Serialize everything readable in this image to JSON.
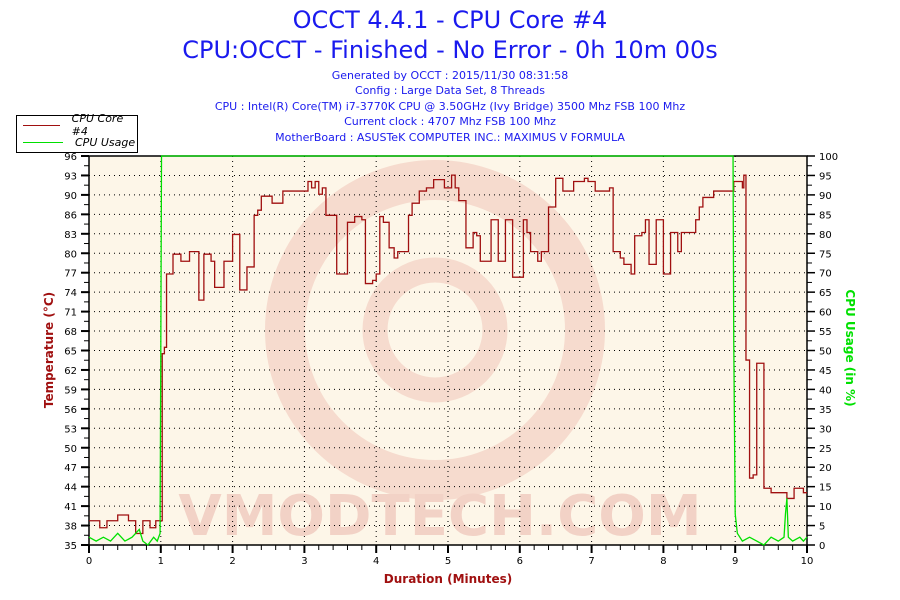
{
  "title": "OCCT 4.4.1 - CPU Core #4",
  "subtitle": "CPU:OCCT - Finished - No Error - 0h 10m 00s",
  "info_lines": [
    "Generated by OCCT : 2015/11/30 08:31:58",
    "Config : Large Data Set, 8 Threads",
    "CPU : Intel(R) Core(TM) i7-3770K CPU @ 3.50GHz (Ivy Bridge) 3500 Mhz FSB 100 Mhz",
    "Current clock : 4707 Mhz FSB 100 Mhz",
    "MotherBoard : ASUSTeK COMPUTER INC.: MAXIMUS V FORMULA"
  ],
  "watermark": "VMODTECH.COM",
  "colors": {
    "temperature": "#a01010",
    "cpu_usage": "#00e000",
    "plot_bg": "#fdf6e8",
    "title": "#1a1aee"
  },
  "chart_data": {
    "type": "line",
    "xlabel": "Duration (Minutes)",
    "ylabel": "Temperature (°C)",
    "y2label": "CPU Usage (in %)",
    "xlim": [
      0,
      10
    ],
    "ylim": [
      35,
      96
    ],
    "y2lim": [
      0,
      100
    ],
    "grid": true,
    "legend_position": "top-left",
    "x_ticks": [
      "0",
      "1",
      "2",
      "3",
      "4",
      "5",
      "6",
      "7",
      "8",
      "9",
      "10"
    ],
    "y_ticks": [
      "35",
      "38",
      "41",
      "44",
      "47",
      "50",
      "53",
      "56",
      "59",
      "62",
      "65",
      "68",
      "71",
      "74",
      "77",
      "80",
      "83",
      "86",
      "90",
      "93",
      "96"
    ],
    "y2_ticks": [
      "0",
      "5",
      "10",
      "15",
      "20",
      "25",
      "30",
      "35",
      "40",
      "45",
      "50",
      "55",
      "60",
      "65",
      "70",
      "75",
      "80",
      "85",
      "90",
      "95",
      "100"
    ],
    "series": [
      {
        "name": "CPU Core #4",
        "axis": "left",
        "step": true,
        "points": [
          [
            0,
            38.8
          ],
          [
            0.15,
            37.7
          ],
          [
            0.25,
            38.8
          ],
          [
            0.4,
            39.7
          ],
          [
            0.55,
            38.8
          ],
          [
            0.65,
            36.8
          ],
          [
            0.75,
            38.8
          ],
          [
            0.85,
            37.7
          ],
          [
            0.93,
            38.8
          ],
          [
            1.0,
            38.8
          ],
          [
            1.02,
            65
          ],
          [
            1.05,
            66
          ],
          [
            1.08,
            77.5
          ],
          [
            1.17,
            80.6
          ],
          [
            1.28,
            79.5
          ],
          [
            1.4,
            81
          ],
          [
            1.53,
            73.4
          ],
          [
            1.6,
            80.6
          ],
          [
            1.7,
            79.5
          ],
          [
            1.75,
            75.4
          ],
          [
            1.88,
            79.5
          ],
          [
            2.0,
            83.7
          ],
          [
            2.1,
            75
          ],
          [
            2.2,
            78.6
          ],
          [
            2.3,
            86.7
          ],
          [
            2.35,
            87.5
          ],
          [
            2.4,
            89.7
          ],
          [
            2.55,
            88.6
          ],
          [
            2.7,
            90.5
          ],
          [
            3.05,
            92
          ],
          [
            3.1,
            91
          ],
          [
            3.15,
            92
          ],
          [
            3.2,
            90
          ],
          [
            3.25,
            91
          ],
          [
            3.3,
            86.7
          ],
          [
            3.45,
            77.5
          ],
          [
            3.6,
            85.6
          ],
          [
            3.7,
            86.5
          ],
          [
            3.8,
            86
          ],
          [
            3.85,
            76
          ],
          [
            3.95,
            76.5
          ],
          [
            4.0,
            77.5
          ],
          [
            4.05,
            86.5
          ],
          [
            4.1,
            85.6
          ],
          [
            4.18,
            81.6
          ],
          [
            4.25,
            80
          ],
          [
            4.3,
            81
          ],
          [
            4.45,
            86.7
          ],
          [
            4.5,
            88.6
          ],
          [
            4.6,
            90.5
          ],
          [
            4.7,
            91
          ],
          [
            4.8,
            92.3
          ],
          [
            4.95,
            91
          ],
          [
            5.05,
            93
          ],
          [
            5.1,
            91
          ],
          [
            5.15,
            89
          ],
          [
            5.25,
            81.6
          ],
          [
            5.35,
            84
          ],
          [
            5.4,
            83.5
          ],
          [
            5.45,
            79.5
          ],
          [
            5.6,
            86
          ],
          [
            5.7,
            79.5
          ],
          [
            5.8,
            86
          ],
          [
            5.9,
            77
          ],
          [
            6.05,
            86
          ],
          [
            6.1,
            84
          ],
          [
            6.15,
            81
          ],
          [
            6.25,
            79.5
          ],
          [
            6.3,
            81
          ],
          [
            6.4,
            88
          ],
          [
            6.5,
            92.5
          ],
          [
            6.6,
            90.5
          ],
          [
            6.75,
            92
          ],
          [
            6.9,
            92.5
          ],
          [
            6.95,
            92
          ],
          [
            7.05,
            90.5
          ],
          [
            7.25,
            91
          ],
          [
            7.3,
            81
          ],
          [
            7.4,
            80
          ],
          [
            7.45,
            79
          ],
          [
            7.55,
            77.5
          ],
          [
            7.6,
            83.5
          ],
          [
            7.7,
            84
          ],
          [
            7.75,
            86
          ],
          [
            7.8,
            79
          ],
          [
            7.9,
            86
          ],
          [
            8.0,
            77.5
          ],
          [
            8.1,
            84
          ],
          [
            8.2,
            81
          ],
          [
            8.25,
            84
          ],
          [
            8.45,
            86
          ],
          [
            8.5,
            88
          ],
          [
            8.55,
            89.5
          ],
          [
            8.7,
            90.5
          ],
          [
            8.98,
            92
          ],
          [
            9.05,
            92
          ],
          [
            9.1,
            91
          ],
          [
            9.12,
            93
          ],
          [
            9.15,
            64
          ],
          [
            9.2,
            45.5
          ],
          [
            9.25,
            46
          ],
          [
            9.3,
            63.5
          ],
          [
            9.4,
            43.9
          ],
          [
            9.5,
            43.2
          ],
          [
            9.72,
            42.3
          ],
          [
            9.82,
            43.9
          ],
          [
            9.95,
            43.2
          ],
          [
            10,
            43.2
          ]
        ]
      },
      {
        "name": "CPU Usage",
        "axis": "right",
        "step": false,
        "points": [
          [
            0,
            2
          ],
          [
            0.1,
            1
          ],
          [
            0.2,
            2
          ],
          [
            0.3,
            1
          ],
          [
            0.4,
            3
          ],
          [
            0.5,
            1
          ],
          [
            0.6,
            2
          ],
          [
            0.7,
            4
          ],
          [
            0.75,
            1
          ],
          [
            0.82,
            0
          ],
          [
            0.9,
            2
          ],
          [
            0.95,
            1
          ],
          [
            0.99,
            3
          ],
          [
            1.0,
            50
          ],
          [
            1.01,
            100
          ],
          [
            8.97,
            100
          ],
          [
            8.98,
            52
          ],
          [
            9.0,
            8
          ],
          [
            9.03,
            3
          ],
          [
            9.1,
            1
          ],
          [
            9.2,
            2
          ],
          [
            9.3,
            1
          ],
          [
            9.4,
            0
          ],
          [
            9.5,
            2
          ],
          [
            9.6,
            1
          ],
          [
            9.68,
            2
          ],
          [
            9.7,
            8
          ],
          [
            9.72,
            12
          ],
          [
            9.74,
            2
          ],
          [
            9.8,
            1
          ],
          [
            9.9,
            2
          ],
          [
            9.95,
            1
          ],
          [
            10,
            2
          ]
        ]
      }
    ]
  }
}
